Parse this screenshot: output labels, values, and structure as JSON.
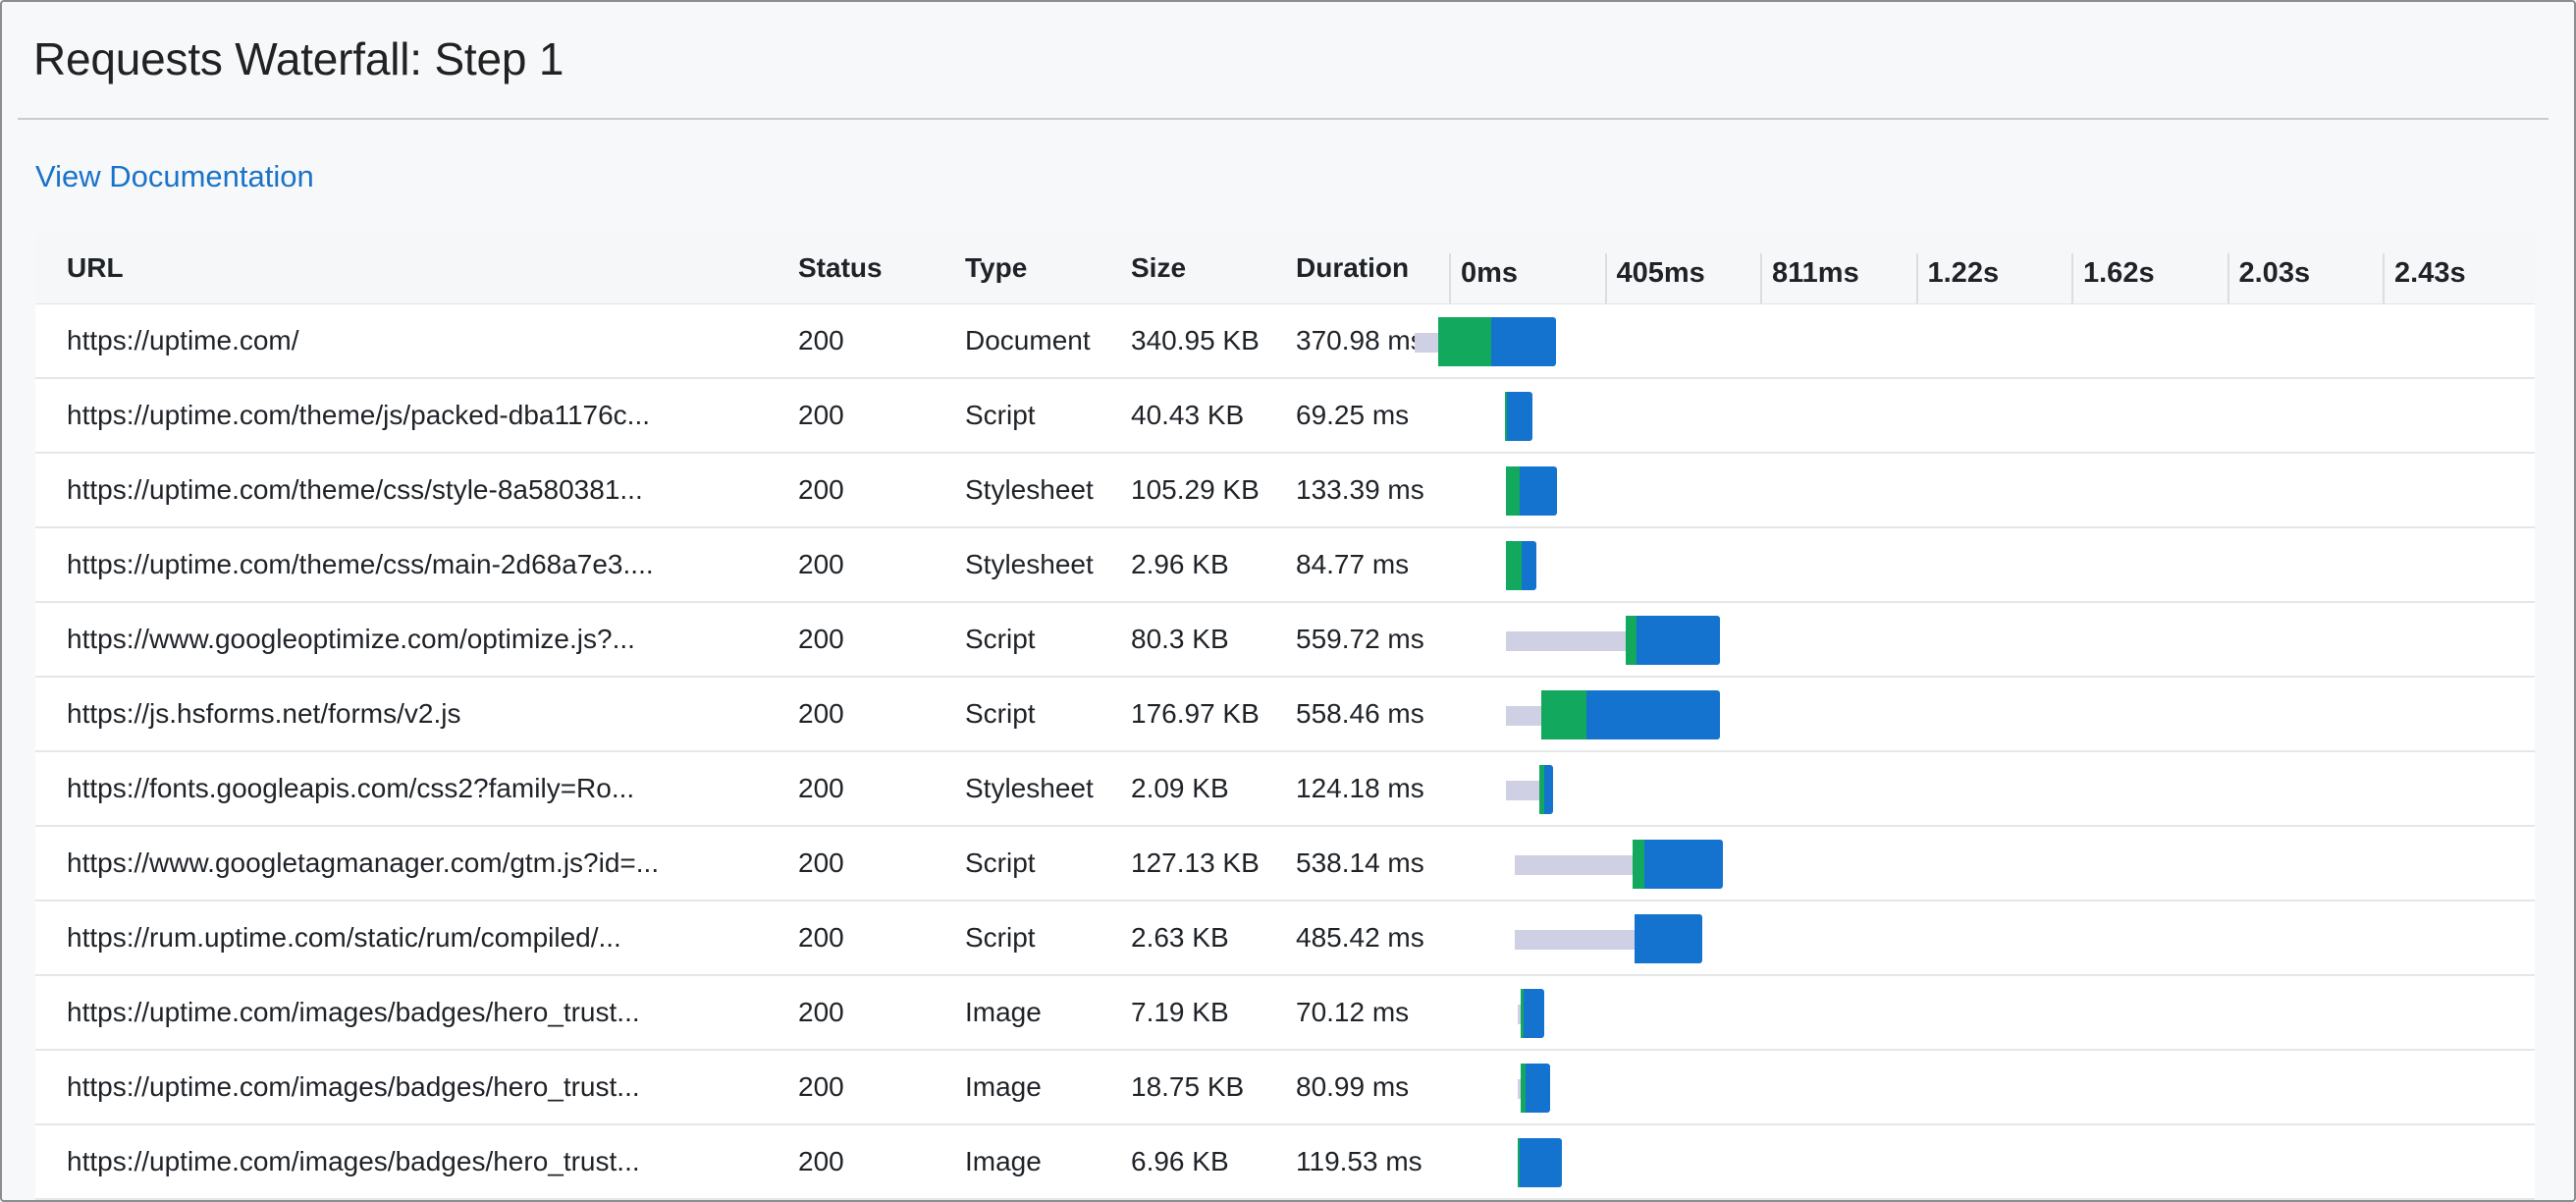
{
  "title": "Requests Waterfall: Step 1",
  "doc_link": "View Documentation",
  "colors": {
    "link": "#1a73c8",
    "queue": "#cfd0e3",
    "connect": "#12a85d",
    "download": "#1573d0"
  },
  "columns": {
    "url": "URL",
    "status": "Status",
    "type": "Type",
    "size": "Size",
    "duration": "Duration"
  },
  "timeline_ticks": [
    "0ms",
    "405ms",
    "811ms",
    "1.22s",
    "1.62s",
    "2.03s",
    "2.43s"
  ],
  "rows": [
    {
      "url": "https://uptime.com/",
      "status": "200",
      "type": "Document",
      "size": "340.95 KB",
      "duration": "370.98 ms"
    },
    {
      "url": "https://uptime.com/theme/js/packed-dba1176c...",
      "status": "200",
      "type": "Script",
      "size": "40.43 KB",
      "duration": "69.25 ms"
    },
    {
      "url": "https://uptime.com/theme/css/style-8a580381...",
      "status": "200",
      "type": "Stylesheet",
      "size": "105.29 KB",
      "duration": "133.39 ms"
    },
    {
      "url": "https://uptime.com/theme/css/main-2d68a7e3....",
      "status": "200",
      "type": "Stylesheet",
      "size": "2.96 KB",
      "duration": "84.77 ms"
    },
    {
      "url": "https://www.googleoptimize.com/optimize.js?...",
      "status": "200",
      "type": "Script",
      "size": "80.3 KB",
      "duration": "559.72 ms"
    },
    {
      "url": "https://js.hsforms.net/forms/v2.js",
      "status": "200",
      "type": "Script",
      "size": "176.97 KB",
      "duration": "558.46 ms"
    },
    {
      "url": "https://fonts.googleapis.com/css2?family=Ro...",
      "status": "200",
      "type": "Stylesheet",
      "size": "2.09 KB",
      "duration": "124.18 ms"
    },
    {
      "url": "https://www.googletagmanager.com/gtm.js?id=...",
      "status": "200",
      "type": "Script",
      "size": "127.13 KB",
      "duration": "538.14 ms"
    },
    {
      "url": "https://rum.uptime.com/static/rum/compiled/...",
      "status": "200",
      "type": "Script",
      "size": "2.63 KB",
      "duration": "485.42 ms"
    },
    {
      "url": "https://uptime.com/images/badges/hero_trust...",
      "status": "200",
      "type": "Image",
      "size": "7.19 KB",
      "duration": "70.12 ms"
    },
    {
      "url": "https://uptime.com/images/badges/hero_trust...",
      "status": "200",
      "type": "Image",
      "size": "18.75 KB",
      "duration": "80.99 ms"
    },
    {
      "url": "https://uptime.com/images/badges/hero_trust...",
      "status": "200",
      "type": "Image",
      "size": "6.96 KB",
      "duration": "119.53 ms"
    }
  ]
}
